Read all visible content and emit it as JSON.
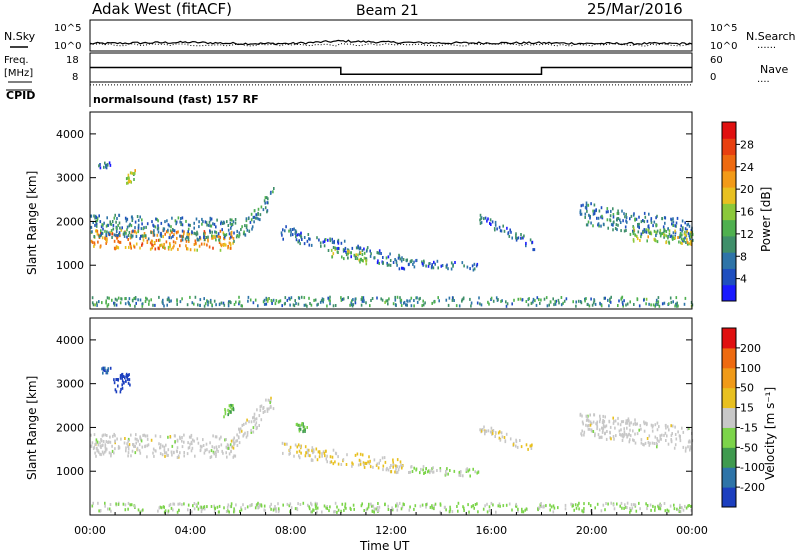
{
  "header": {
    "station": "Adak West (fitACF)",
    "beam": "Beam 21",
    "date": "25/Mar/2016"
  },
  "strip_labels": {
    "nsky": "N.Sky",
    "nsearch": "N.Search",
    "nsearch_marker": "......",
    "freq_line1": "Freq.",
    "freq_line2": "[MHz]",
    "nave": "Nave",
    "nave_marker": "....",
    "cpid": "CPID",
    "cpid_value": "normalsound (fast) 157 RF"
  },
  "strip_ticks": {
    "nsky_left": [
      "10^5",
      "10^0"
    ],
    "nsky_right": [
      "10^5",
      "10^0"
    ],
    "freq_left": [
      "18",
      "8"
    ],
    "nave_right": [
      "60",
      "0"
    ]
  },
  "chart_data": [
    {
      "type": "line",
      "title": "N.Sky / N.Search",
      "x": [
        0,
        2,
        4,
        6,
        8,
        10,
        12,
        14,
        16,
        18,
        20,
        22,
        24
      ],
      "series": [
        {
          "name": "N.Sky",
          "values": [
            1.2,
            1.3,
            1.4,
            1.2,
            1.2,
            1.6,
            1.4,
            1.3,
            1.3,
            1.3,
            1.2,
            1.2,
            1.2
          ]
        },
        {
          "name": "N.Search",
          "values": [
            0.9,
            1.0,
            1.0,
            0.9,
            0.9,
            1.0,
            1.0,
            0.9,
            0.9,
            0.9,
            0.9,
            0.9,
            0.9
          ]
        }
      ],
      "ylim": [
        0,
        5
      ]
    },
    {
      "type": "line",
      "title": "Freq. / Nave",
      "x": [
        0,
        10,
        10,
        18,
        18,
        24
      ],
      "series": [
        {
          "name": "Freq.",
          "values": [
            13,
            13,
            10.7,
            10.7,
            13,
            13
          ]
        },
        {
          "name": "Nave",
          "values": [
            7,
            7,
            7,
            7,
            7,
            7
          ]
        }
      ],
      "ylim": [
        8,
        18
      ]
    },
    {
      "type": "heatmap",
      "title": "Power",
      "xlabel": "",
      "ylabel": "Slant Range [km]",
      "xlim": [
        0,
        24
      ],
      "ylim": [
        0,
        4500
      ],
      "yticks": [
        "1000",
        "2000",
        "3000",
        "4000"
      ],
      "colorbar": {
        "label": "Power [dB]",
        "ticks": [
          "4",
          "8",
          "12",
          "16",
          "20",
          "24",
          "28"
        ],
        "range": [
          0,
          32
        ],
        "colors": [
          "#1a1aff",
          "#1f4fbf",
          "#2e74a8",
          "#3f8f6a",
          "#4fb04f",
          "#8bc83a",
          "#e8c020",
          "#f29a18",
          "#ee6a10",
          "#e84010",
          "#e01010"
        ]
      },
      "regions": [
        {
          "t": [
            0.0,
            5.8
          ],
          "r_center": [
            1600,
            1550
          ],
          "width": 220,
          "value": 22
        },
        {
          "t": [
            0.0,
            5.8
          ],
          "r_center": [
            1900,
            1800
          ],
          "width": 260,
          "value": 8
        },
        {
          "t": [
            5.8,
            7.3
          ],
          "r_center": [
            1600,
            2600
          ],
          "width": 200,
          "value": 9
        },
        {
          "t": [
            7.6,
            12.5
          ],
          "r_center": [
            1750,
            1050
          ],
          "width": 160,
          "value": 7
        },
        {
          "t": [
            9.5,
            11.0
          ],
          "r_center": [
            1300,
            1150
          ],
          "width": 120,
          "value": 14
        },
        {
          "t": [
            12.5,
            15.5
          ],
          "r_center": [
            1050,
            950
          ],
          "width": 90,
          "value": 6
        },
        {
          "t": [
            15.5,
            17.7
          ],
          "r_center": [
            2050,
            1450
          ],
          "width": 110,
          "value": 6
        },
        {
          "t": [
            19.5,
            24.0
          ],
          "r_center": [
            2200,
            1750
          ],
          "width": 260,
          "value": 8
        },
        {
          "t": [
            21.5,
            24.0
          ],
          "r_center": [
            1700,
            1600
          ],
          "width": 160,
          "value": 16
        },
        {
          "t": [
            1.4,
            1.8
          ],
          "r_center": [
            2900,
            3100
          ],
          "width": 120,
          "value": 16
        },
        {
          "t": [
            0.3,
            0.8
          ],
          "r_center": [
            3250,
            3300
          ],
          "width": 60,
          "value": 6
        },
        {
          "t": [
            0.0,
            24.0
          ],
          "r_center": [
            150,
            150
          ],
          "width": 120,
          "value": 10
        }
      ]
    },
    {
      "type": "heatmap",
      "title": "Velocity",
      "xlabel": "Time UT",
      "ylabel": "Slant Range [km]",
      "xlim": [
        0,
        24
      ],
      "ylim": [
        0,
        4500
      ],
      "xticks": [
        "00:00",
        "04:00",
        "08:00",
        "12:00",
        "16:00",
        "20:00",
        "00:00"
      ],
      "yticks": [
        "1000",
        "2000",
        "3000",
        "4000"
      ],
      "colorbar": {
        "label": "Velocity [m s⁻¹]",
        "ticks": [
          "200",
          "100",
          "50",
          "15",
          "-15",
          "-50",
          "-100",
          "-200"
        ],
        "range": [
          -250,
          250
        ],
        "colors": [
          "#1c3fbf",
          "#2e74a8",
          "#3f9a4f",
          "#7cd44a",
          "#c8c8c8",
          "#e8c020",
          "#f09a18",
          "#ee6a10",
          "#e01010"
        ]
      },
      "regions": [
        {
          "t": [
            0.0,
            5.8
          ],
          "r_center": [
            1600,
            1550
          ],
          "width": 260,
          "value": 0
        },
        {
          "t": [
            5.8,
            7.3
          ],
          "r_center": [
            1700,
            2600
          ],
          "width": 220,
          "value": 0
        },
        {
          "t": [
            7.6,
            12.5
          ],
          "r_center": [
            1500,
            1100
          ],
          "width": 160,
          "value": 30
        },
        {
          "t": [
            12.5,
            15.5
          ],
          "r_center": [
            1050,
            950
          ],
          "width": 90,
          "value": -30
        },
        {
          "t": [
            15.5,
            17.7
          ],
          "r_center": [
            2000,
            1500
          ],
          "width": 110,
          "value": 20
        },
        {
          "t": [
            19.5,
            24.0
          ],
          "r_center": [
            2100,
            1700
          ],
          "width": 280,
          "value": 0
        },
        {
          "t": [
            0.9,
            1.7
          ],
          "r_center": [
            2900,
            3200
          ],
          "width": 200,
          "value": -230
        },
        {
          "t": [
            0.4,
            0.8
          ],
          "r_center": [
            3300,
            3300
          ],
          "width": 60,
          "value": -200
        },
        {
          "t": [
            5.3,
            5.7
          ],
          "r_center": [
            2350,
            2400
          ],
          "width": 120,
          "value": -80
        },
        {
          "t": [
            8.2,
            8.7
          ],
          "r_center": [
            2000,
            2000
          ],
          "width": 100,
          "value": -90
        },
        {
          "t": [
            0.0,
            24.0
          ],
          "r_center": [
            150,
            150
          ],
          "width": 120,
          "value": -30
        }
      ]
    }
  ]
}
